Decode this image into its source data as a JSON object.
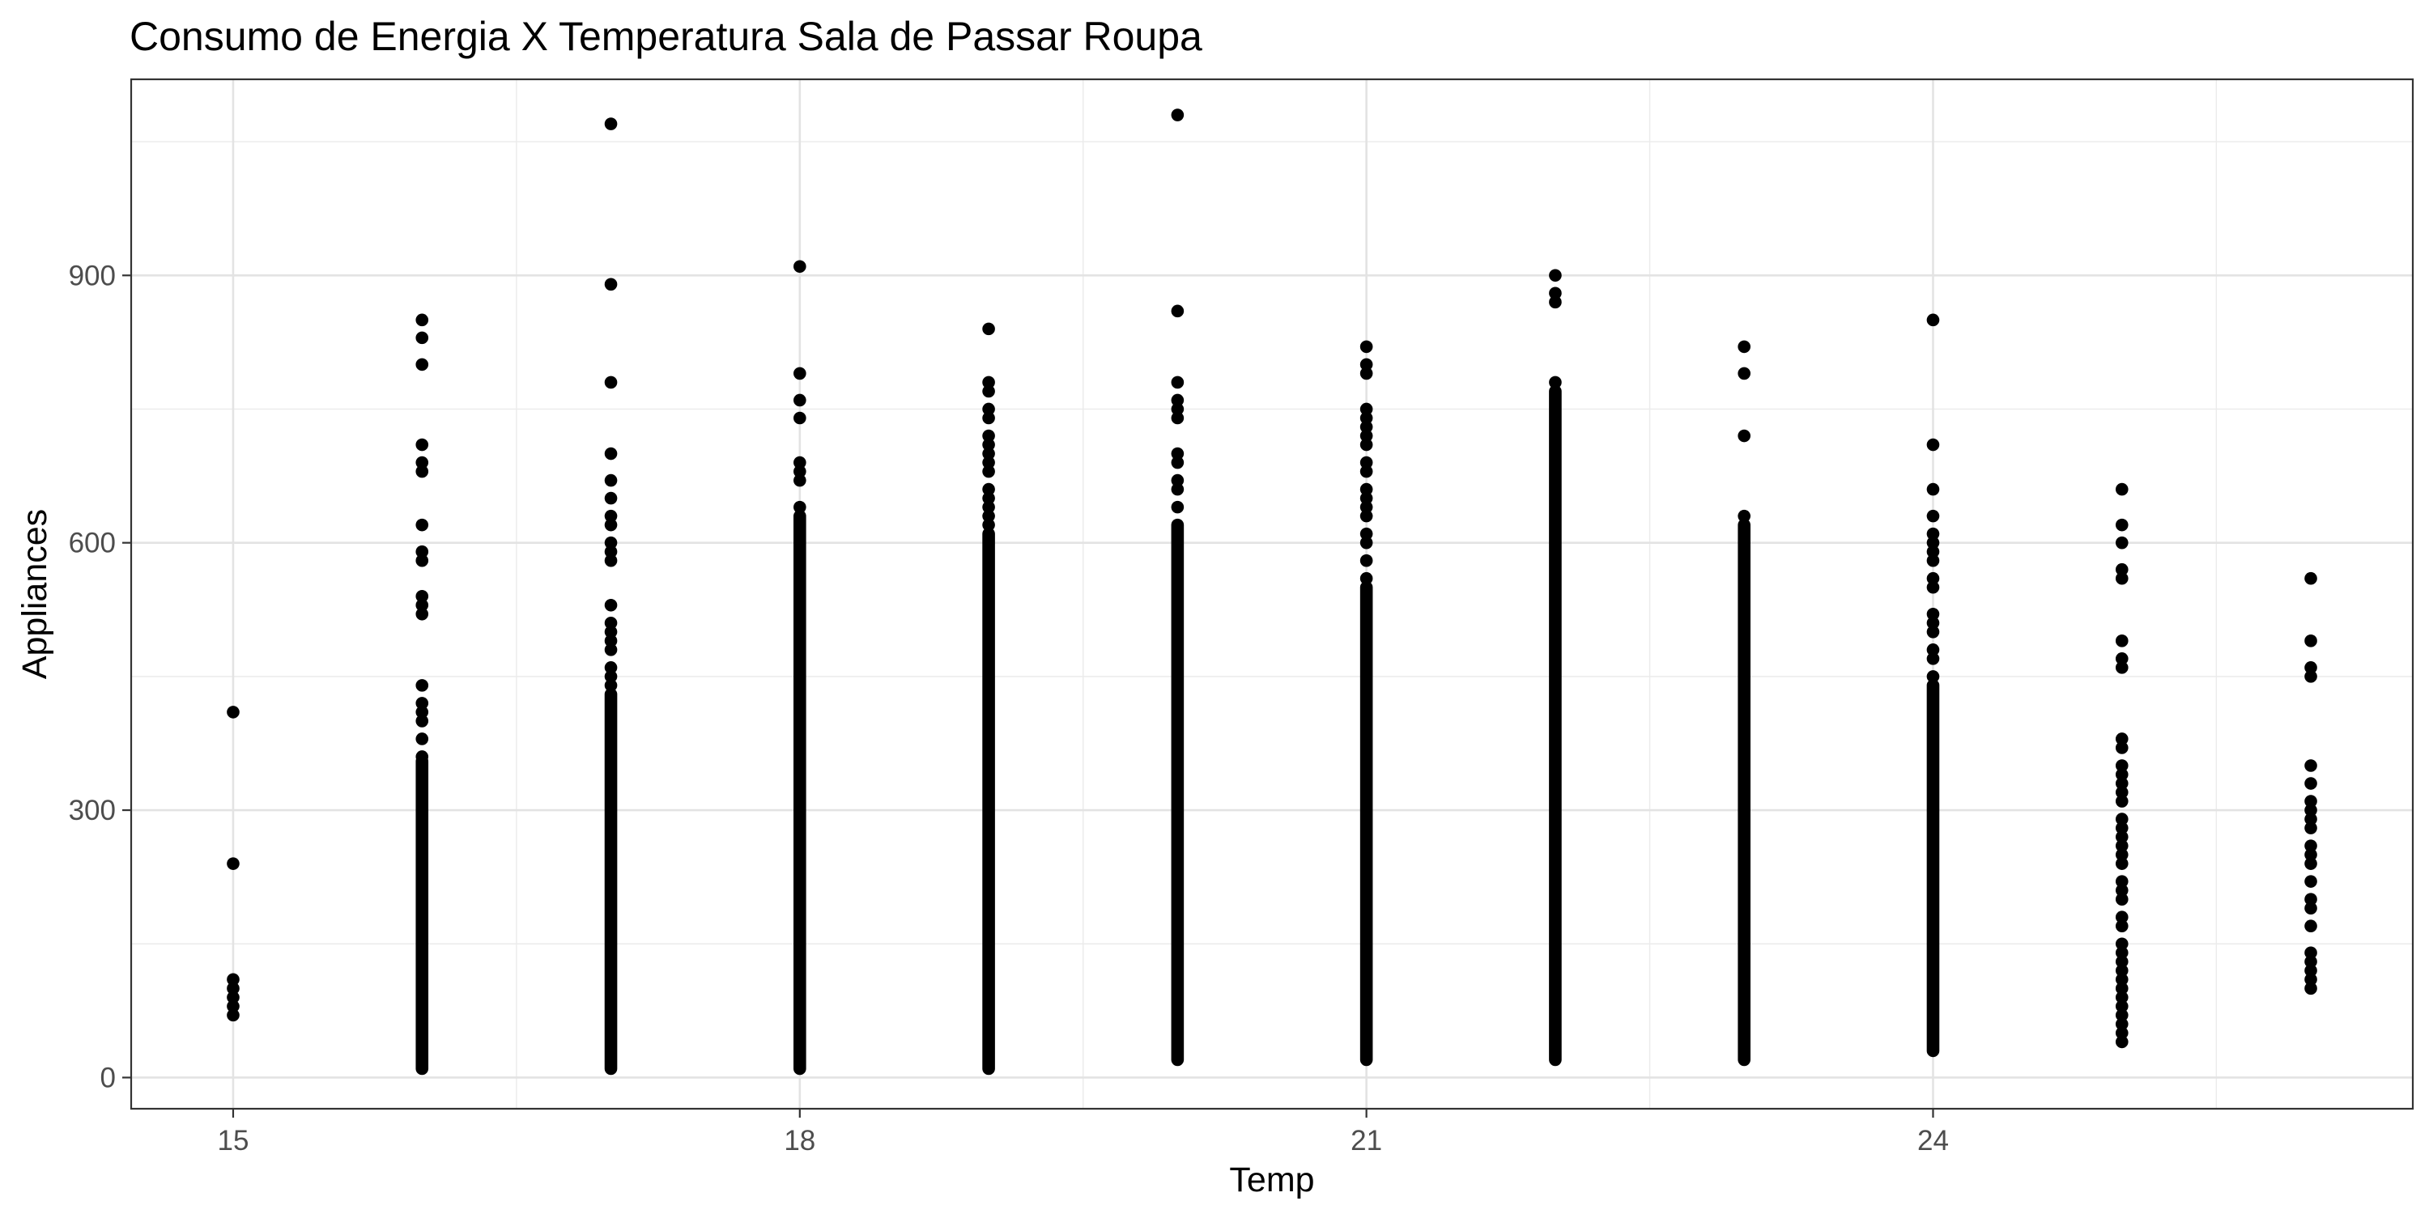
{
  "chart_data": {
    "type": "scatter",
    "title": "Consumo de Energia X Temperatura Sala de Passar Roupa",
    "xlabel": "Temp",
    "ylabel": "Appliances",
    "xlim": [
      14.46,
      26.54
    ],
    "ylim": [
      -35,
      1120
    ],
    "x_ticks": [
      15,
      18,
      21,
      24
    ],
    "x_tick_labels": [
      "15",
      "18",
      "21",
      "24"
    ],
    "x_minor_ticks": [
      16.5,
      19.5,
      22.5,
      25.5
    ],
    "y_ticks": [
      0,
      300,
      600,
      900
    ],
    "y_tick_labels": [
      "0",
      "300",
      "600",
      "900"
    ],
    "y_minor_ticks": [
      150,
      450,
      750,
      1050
    ],
    "grid": true,
    "legend": "none",
    "point_color": "#000000",
    "series": [
      {
        "values": [
          [
            15,
            410
          ],
          [
            15,
            240
          ],
          [
            15,
            110
          ],
          [
            15,
            100
          ],
          [
            15,
            90
          ],
          [
            15,
            80
          ],
          [
            15,
            70
          ],
          [
            16,
            850
          ],
          [
            16,
            830
          ],
          [
            16,
            800
          ],
          [
            16,
            710
          ],
          [
            16,
            690
          ],
          [
            16,
            680
          ],
          [
            16,
            620
          ],
          [
            16,
            590
          ],
          [
            16,
            580
          ],
          [
            16,
            540
          ],
          [
            16,
            530
          ],
          [
            16,
            520
          ],
          [
            16,
            440
          ],
          [
            16,
            420
          ],
          [
            16,
            410
          ],
          [
            16,
            400
          ],
          [
            16,
            380
          ],
          [
            16,
            360
          ],
          [
            17,
            1070
          ],
          [
            17,
            890
          ],
          [
            17,
            780
          ],
          [
            17,
            700
          ],
          [
            17,
            670
          ],
          [
            17,
            650
          ],
          [
            17,
            630
          ],
          [
            17,
            620
          ],
          [
            17,
            600
          ],
          [
            17,
            590
          ],
          [
            17,
            580
          ],
          [
            17,
            530
          ],
          [
            17,
            510
          ],
          [
            17,
            500
          ],
          [
            17,
            490
          ],
          [
            17,
            480
          ],
          [
            17,
            460
          ],
          [
            17,
            450
          ],
          [
            17,
            440
          ],
          [
            18,
            910
          ],
          [
            18,
            790
          ],
          [
            18,
            760
          ],
          [
            18,
            740
          ],
          [
            18,
            690
          ],
          [
            18,
            680
          ],
          [
            18,
            670
          ],
          [
            18,
            640
          ],
          [
            19,
            840
          ],
          [
            19,
            780
          ],
          [
            19,
            770
          ],
          [
            19,
            750
          ],
          [
            19,
            740
          ],
          [
            19,
            720
          ],
          [
            19,
            710
          ],
          [
            19,
            700
          ],
          [
            19,
            690
          ],
          [
            19,
            680
          ],
          [
            19,
            660
          ],
          [
            19,
            650
          ],
          [
            19,
            640
          ],
          [
            19,
            630
          ],
          [
            19,
            620
          ],
          [
            20,
            1080
          ],
          [
            20,
            860
          ],
          [
            20,
            780
          ],
          [
            20,
            760
          ],
          [
            20,
            750
          ],
          [
            20,
            740
          ],
          [
            20,
            700
          ],
          [
            20,
            690
          ],
          [
            20,
            670
          ],
          [
            20,
            660
          ],
          [
            20,
            640
          ],
          [
            21,
            820
          ],
          [
            21,
            800
          ],
          [
            21,
            790
          ],
          [
            21,
            750
          ],
          [
            21,
            740
          ],
          [
            21,
            730
          ],
          [
            21,
            720
          ],
          [
            21,
            710
          ],
          [
            21,
            690
          ],
          [
            21,
            680
          ],
          [
            21,
            660
          ],
          [
            21,
            650
          ],
          [
            21,
            640
          ],
          [
            21,
            630
          ],
          [
            21,
            610
          ],
          [
            21,
            600
          ],
          [
            21,
            580
          ],
          [
            21,
            560
          ],
          [
            22,
            900
          ],
          [
            22,
            880
          ],
          [
            22,
            870
          ],
          [
            22,
            780
          ],
          [
            23,
            820
          ],
          [
            23,
            790
          ],
          [
            23,
            720
          ],
          [
            23,
            630
          ],
          [
            24,
            850
          ],
          [
            24,
            710
          ],
          [
            24,
            660
          ],
          [
            24,
            630
          ],
          [
            24,
            610
          ],
          [
            24,
            600
          ],
          [
            24,
            590
          ],
          [
            24,
            580
          ],
          [
            24,
            560
          ],
          [
            24,
            550
          ],
          [
            24,
            520
          ],
          [
            24,
            510
          ],
          [
            24,
            500
          ],
          [
            24,
            480
          ],
          [
            24,
            470
          ],
          [
            24,
            450
          ],
          [
            25,
            660
          ],
          [
            25,
            620
          ],
          [
            25,
            600
          ],
          [
            25,
            570
          ],
          [
            25,
            560
          ],
          [
            25,
            490
          ],
          [
            25,
            470
          ],
          [
            25,
            460
          ],
          [
            25,
            380
          ],
          [
            25,
            370
          ],
          [
            25,
            350
          ],
          [
            25,
            340
          ],
          [
            25,
            330
          ],
          [
            25,
            320
          ],
          [
            25,
            310
          ],
          [
            25,
            290
          ],
          [
            25,
            280
          ],
          [
            25,
            270
          ],
          [
            25,
            260
          ],
          [
            25,
            250
          ],
          [
            25,
            240
          ],
          [
            25,
            220
          ],
          [
            25,
            210
          ],
          [
            25,
            200
          ],
          [
            25,
            180
          ],
          [
            25,
            170
          ],
          [
            25,
            150
          ],
          [
            25,
            140
          ],
          [
            25,
            130
          ],
          [
            25,
            120
          ],
          [
            25,
            110
          ],
          [
            25,
            100
          ],
          [
            25,
            90
          ],
          [
            25,
            80
          ],
          [
            25,
            70
          ],
          [
            25,
            60
          ],
          [
            25,
            50
          ],
          [
            25,
            40
          ],
          [
            26,
            560
          ],
          [
            26,
            490
          ],
          [
            26,
            460
          ],
          [
            26,
            450
          ],
          [
            26,
            350
          ],
          [
            26,
            330
          ],
          [
            26,
            310
          ],
          [
            26,
            300
          ],
          [
            26,
            290
          ],
          [
            26,
            280
          ],
          [
            26,
            260
          ],
          [
            26,
            250
          ],
          [
            26,
            240
          ],
          [
            26,
            220
          ],
          [
            26,
            200
          ],
          [
            26,
            190
          ],
          [
            26,
            170
          ],
          [
            26,
            140
          ],
          [
            26,
            130
          ],
          [
            26,
            120
          ],
          [
            26,
            110
          ],
          [
            26,
            100
          ]
        ],
        "dense_columns": [
          {
            "x": 16,
            "from": 10,
            "to": 355
          },
          {
            "x": 17,
            "from": 10,
            "to": 430
          },
          {
            "x": 18,
            "from": 10,
            "to": 630
          },
          {
            "x": 19,
            "from": 10,
            "to": 610
          },
          {
            "x": 20,
            "from": 20,
            "to": 620
          },
          {
            "x": 21,
            "from": 20,
            "to": 550
          },
          {
            "x": 22,
            "from": 20,
            "to": 770
          },
          {
            "x": 23,
            "from": 20,
            "to": 620
          },
          {
            "x": 24,
            "from": 30,
            "to": 440
          }
        ]
      }
    ]
  }
}
